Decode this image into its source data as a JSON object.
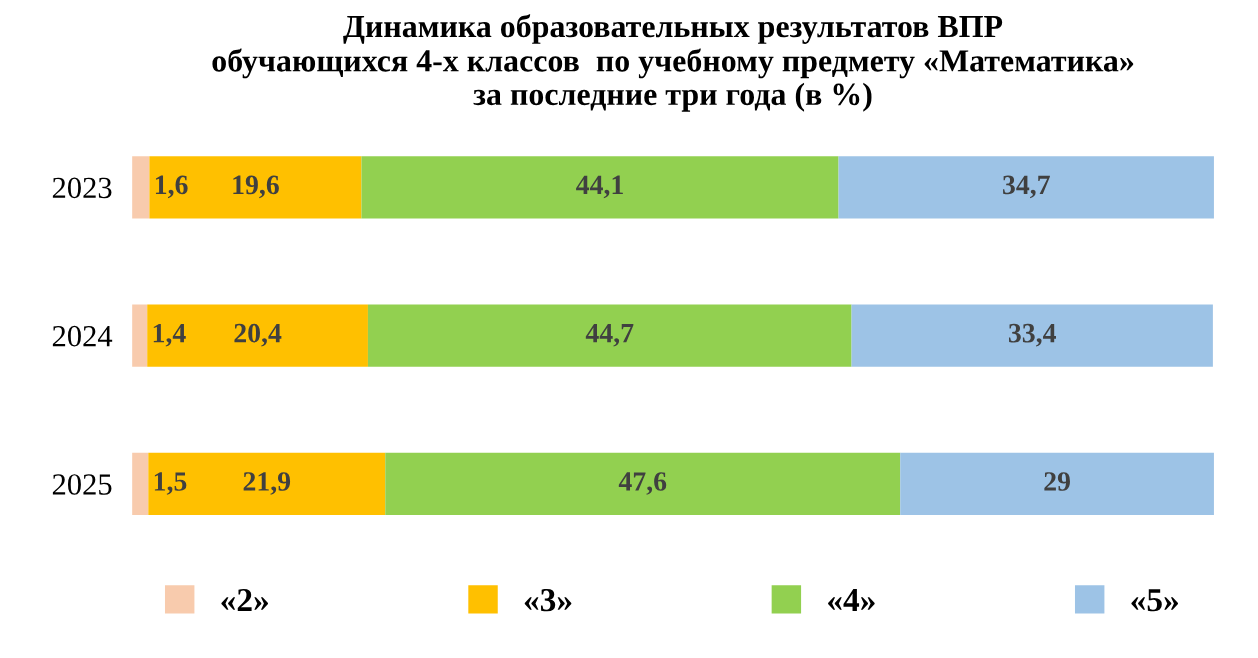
{
  "chart_data": {
    "type": "bar",
    "orientation": "horizontal",
    "stacked": true,
    "title": "Динамика образовательных результатов ВПР\nобучающихся 4-х классов  по учебному предмету «Математика»\nза последние три года (в %)",
    "categories": [
      "2023",
      "2024",
      "2025"
    ],
    "series": [
      {
        "name": "«2»",
        "color": "#f8cbad",
        "values": [
          1.6,
          1.4,
          1.5
        ],
        "value_labels": [
          "1,6",
          "1,4",
          "1,5"
        ]
      },
      {
        "name": "«3»",
        "color": "#ffc000",
        "values": [
          19.6,
          20.4,
          21.9
        ],
        "value_labels": [
          "19,6",
          "20,4",
          "21,9"
        ]
      },
      {
        "name": "«4»",
        "color": "#92d050",
        "values": [
          44.1,
          44.7,
          47.6
        ],
        "value_labels": [
          "44,1",
          "44,7",
          "47,6"
        ]
      },
      {
        "name": "«5»",
        "color": "#9dc3e6",
        "values": [
          34.7,
          33.4,
          29
        ],
        "value_labels": [
          "34,7",
          "33,4",
          "29"
        ]
      }
    ],
    "xlim": [
      0,
      100
    ],
    "tick_labels": "y",
    "grid": false,
    "legend": "bottom"
  }
}
